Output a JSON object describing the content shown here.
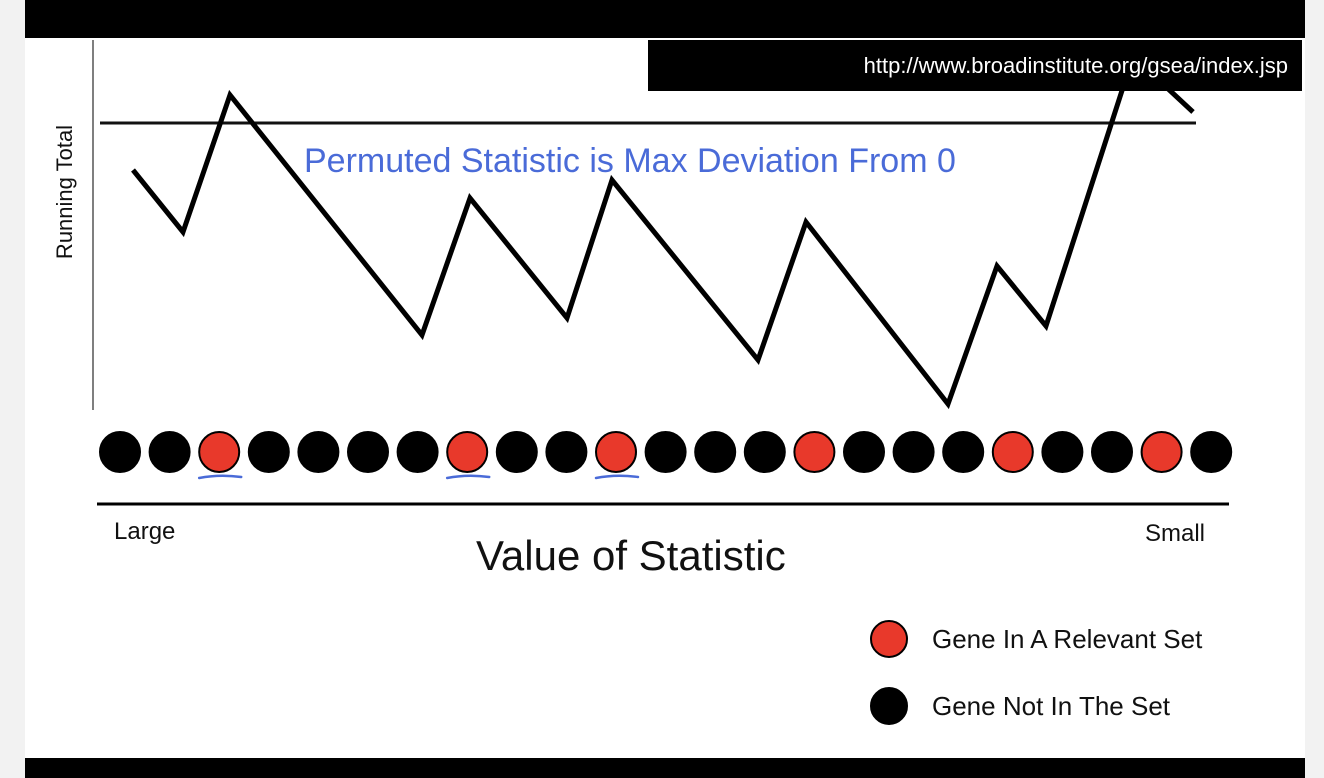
{
  "url": "http://www.broadinstitute.org/gsea/index.jsp",
  "y_axis_label": "Running Total",
  "annotation": "Permuted Statistic is Max Deviation From 0",
  "x_axis": {
    "low_label": "Large",
    "high_label": "Small",
    "title": "Value of Statistic"
  },
  "legend": [
    {
      "label": "Gene In A Relevant Set",
      "color": "#e8392b"
    },
    {
      "label": "Gene Not In The Set",
      "color": "#000000"
    }
  ],
  "colors": {
    "in_set": "#e8392b",
    "not_in_set": "#000000",
    "annotation": "#4a6bd8",
    "marks": "#4a6bd8"
  },
  "genes": [
    false,
    false,
    true,
    false,
    false,
    false,
    false,
    true,
    false,
    false,
    true,
    false,
    false,
    false,
    true,
    false,
    false,
    false,
    true,
    false,
    false,
    true,
    false
  ],
  "underlined_genes": [
    2,
    7,
    10
  ]
}
